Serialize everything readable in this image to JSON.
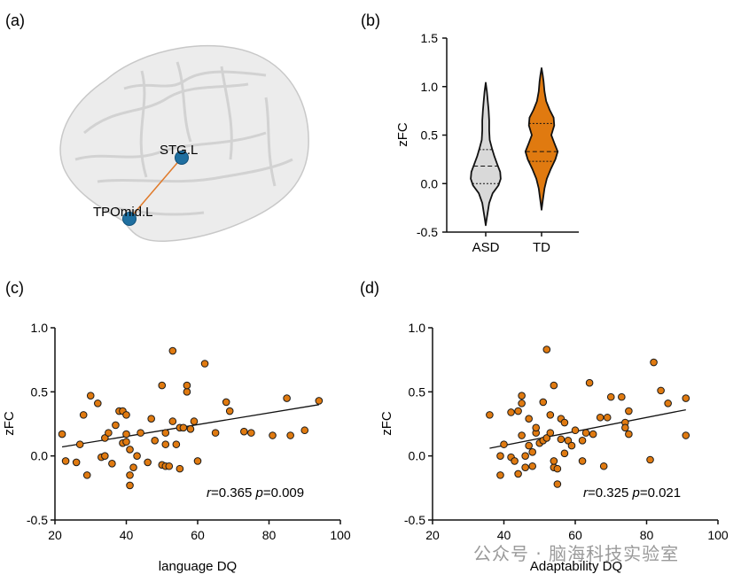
{
  "panels": {
    "a": "(a)",
    "b": "(b)",
    "c": "(c)",
    "d": "(d)"
  },
  "brain": {
    "node1": "STG.L",
    "node2": "TPOmid.L",
    "node_color": "#1f6fa0",
    "edge_color": "#e07a2a"
  },
  "watermark": "公众号 · 脑海科技实验室",
  "colors": {
    "asd": "#d9d9d9",
    "td": "#e07a10",
    "point": "#e07a10"
  },
  "chart_data": [
    {
      "type": "violin",
      "panel": "(b)",
      "ylabel": "zFC",
      "categories": [
        "ASD",
        "TD"
      ],
      "yticks": [
        "1.5",
        "1.0",
        "0.5",
        "0.0",
        "-0.5"
      ],
      "ylim": [
        -0.5,
        1.5
      ],
      "violins": [
        {
          "name": "ASD",
          "min": -0.43,
          "max": 1.04,
          "median": 0.18,
          "q1": 0.0,
          "q3": 0.35,
          "shape": [
            [
              -0.43,
              0.0
            ],
            [
              -0.35,
              0.02
            ],
            [
              -0.2,
              0.06
            ],
            [
              -0.1,
              0.12
            ],
            [
              -0.02,
              0.22
            ],
            [
              0.05,
              0.26
            ],
            [
              0.12,
              0.25
            ],
            [
              0.2,
              0.2
            ],
            [
              0.28,
              0.15
            ],
            [
              0.36,
              0.11
            ],
            [
              0.45,
              0.07
            ],
            [
              0.55,
              0.06
            ],
            [
              0.65,
              0.06
            ],
            [
              0.75,
              0.05
            ],
            [
              0.85,
              0.035
            ],
            [
              0.95,
              0.02
            ],
            [
              1.04,
              0.0
            ]
          ]
        },
        {
          "name": "TD",
          "min": -0.27,
          "max": 1.19,
          "median": 0.33,
          "q1": 0.23,
          "q3": 0.62,
          "shape": [
            [
              -0.27,
              0.0
            ],
            [
              -0.18,
              0.02
            ],
            [
              -0.05,
              0.05
            ],
            [
              0.05,
              0.09
            ],
            [
              0.15,
              0.16
            ],
            [
              0.25,
              0.24
            ],
            [
              0.33,
              0.28
            ],
            [
              0.42,
              0.22
            ],
            [
              0.5,
              0.17
            ],
            [
              0.6,
              0.22
            ],
            [
              0.68,
              0.21
            ],
            [
              0.76,
              0.14
            ],
            [
              0.85,
              0.08
            ],
            [
              0.95,
              0.05
            ],
            [
              1.05,
              0.035
            ],
            [
              1.12,
              0.02
            ],
            [
              1.19,
              0.0
            ]
          ]
        }
      ]
    },
    {
      "type": "scatter",
      "panel": "(c)",
      "xlabel": "language DQ",
      "ylabel": "zFC",
      "xlim": [
        20,
        100
      ],
      "ylim": [
        -0.5,
        1.0
      ],
      "xticks": [
        "20",
        "40",
        "60",
        "80",
        "100"
      ],
      "yticks": [
        "1.0",
        "0.5",
        "0.0",
        "-0.5"
      ],
      "stats_r": "=0.365",
      "stats_p": "=0.009",
      "fit": [
        [
          22,
          0.07
        ],
        [
          94,
          0.4
        ]
      ],
      "points": [
        [
          22,
          0.17
        ],
        [
          23,
          -0.04
        ],
        [
          26,
          -0.05
        ],
        [
          27,
          0.09
        ],
        [
          28,
          0.32
        ],
        [
          29,
          -0.15
        ],
        [
          30,
          0.47
        ],
        [
          32,
          0.41
        ],
        [
          33,
          -0.01
        ],
        [
          34,
          0.0
        ],
        [
          34,
          0.14
        ],
        [
          35,
          0.18
        ],
        [
          36,
          -0.06
        ],
        [
          37,
          0.24
        ],
        [
          38,
          0.35
        ],
        [
          39,
          0.1
        ],
        [
          39,
          0.35
        ],
        [
          40,
          0.11
        ],
        [
          40,
          0.17
        ],
        [
          40,
          0.32
        ],
        [
          41,
          0.05
        ],
        [
          41,
          -0.15
        ],
        [
          41,
          -0.23
        ],
        [
          42,
          -0.09
        ],
        [
          43,
          0.0
        ],
        [
          44,
          0.18
        ],
        [
          46,
          -0.05
        ],
        [
          47,
          0.29
        ],
        [
          48,
          0.12
        ],
        [
          50,
          0.55
        ],
        [
          50,
          -0.07
        ],
        [
          51,
          0.09
        ],
        [
          51,
          0.18
        ],
        [
          51,
          -0.08
        ],
        [
          52,
          -0.08
        ],
        [
          53,
          0.82
        ],
        [
          53,
          0.27
        ],
        [
          54,
          0.09
        ],
        [
          55,
          0.22
        ],
        [
          55,
          -0.1
        ],
        [
          56,
          0.22
        ],
        [
          57,
          0.5
        ],
        [
          57,
          0.55
        ],
        [
          58,
          0.21
        ],
        [
          59,
          0.27
        ],
        [
          60,
          -0.04
        ],
        [
          62,
          0.72
        ],
        [
          65,
          0.18
        ],
        [
          68,
          0.42
        ],
        [
          69,
          0.35
        ],
        [
          73,
          0.19
        ],
        [
          75,
          0.18
        ],
        [
          81,
          0.16
        ],
        [
          85,
          0.45
        ],
        [
          86,
          0.16
        ],
        [
          90,
          0.2
        ],
        [
          94,
          0.43
        ]
      ]
    },
    {
      "type": "scatter",
      "panel": "(d)",
      "xlabel": "Adaptability DQ",
      "ylabel": "zFC",
      "xlim": [
        20,
        100
      ],
      "ylim": [
        -0.5,
        1.0
      ],
      "xticks": [
        "20",
        "40",
        "60",
        "80",
        "100"
      ],
      "yticks": [
        "1.0",
        "0.5",
        "0.0",
        "-0.5"
      ],
      "stats_r": "=0.325",
      "stats_p": "=0.021",
      "fit": [
        [
          36,
          0.06
        ],
        [
          91,
          0.36
        ]
      ],
      "points": [
        [
          36,
          0.32
        ],
        [
          39,
          -0.15
        ],
        [
          39,
          0.0
        ],
        [
          40,
          0.09
        ],
        [
          42,
          -0.01
        ],
        [
          42,
          0.34
        ],
        [
          43,
          -0.04
        ],
        [
          44,
          0.35
        ],
        [
          44,
          -0.14
        ],
        [
          45,
          0.16
        ],
        [
          45,
          0.41
        ],
        [
          45,
          0.47
        ],
        [
          46,
          0.0
        ],
        [
          46,
          -0.09
        ],
        [
          47,
          0.08
        ],
        [
          47,
          0.29
        ],
        [
          48,
          -0.08
        ],
        [
          48,
          0.03
        ],
        [
          49,
          0.18
        ],
        [
          49,
          0.22
        ],
        [
          50,
          0.1
        ],
        [
          51,
          0.12
        ],
        [
          51,
          0.42
        ],
        [
          52,
          0.83
        ],
        [
          52,
          0.14
        ],
        [
          53,
          0.32
        ],
        [
          53,
          0.18
        ],
        [
          54,
          -0.09
        ],
        [
          54,
          -0.04
        ],
        [
          54,
          0.55
        ],
        [
          55,
          -0.22
        ],
        [
          55,
          -0.1
        ],
        [
          56,
          0.13
        ],
        [
          56,
          0.29
        ],
        [
          57,
          0.02
        ],
        [
          57,
          0.26
        ],
        [
          58,
          0.12
        ],
        [
          59,
          0.08
        ],
        [
          60,
          0.2
        ],
        [
          62,
          -0.04
        ],
        [
          62,
          0.12
        ],
        [
          63,
          0.18
        ],
        [
          64,
          0.57
        ],
        [
          65,
          0.17
        ],
        [
          67,
          0.3
        ],
        [
          68,
          -0.08
        ],
        [
          69,
          0.3
        ],
        [
          70,
          0.46
        ],
        [
          73,
          0.46
        ],
        [
          74,
          0.26
        ],
        [
          74,
          0.22
        ],
        [
          75,
          0.17
        ],
        [
          75,
          0.35
        ],
        [
          81,
          -0.03
        ],
        [
          82,
          0.73
        ],
        [
          84,
          0.51
        ],
        [
          86,
          0.41
        ],
        [
          91,
          0.45
        ],
        [
          91,
          0.16
        ]
      ]
    }
  ]
}
